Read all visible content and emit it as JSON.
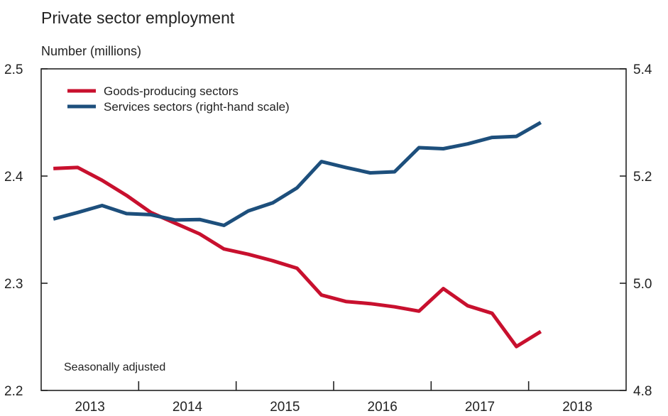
{
  "chart_data": {
    "type": "line",
    "title": "Private sector employment",
    "ylabel": "Number (millions)",
    "note": "Seasonally adjusted",
    "x_tick_labels": [
      "2013",
      "2014",
      "2015",
      "2016",
      "2017",
      "2018"
    ],
    "x_range": [
      2012.5,
      2018.5
    ],
    "y_left": {
      "range": [
        2.2,
        2.5
      ],
      "ticks": [
        "2.2",
        "2.3",
        "2.4",
        "2.5"
      ]
    },
    "y_right": {
      "range": [
        4.8,
        5.4
      ],
      "ticks": [
        "4.8",
        "5.0",
        "5.2",
        "5.4"
      ]
    },
    "grid": false,
    "legend_position": "top-left",
    "series": [
      {
        "name": "Goods-producing sectors",
        "axis": "left",
        "color": "#c8102e",
        "x": [
          2012.625,
          2012.875,
          2013.125,
          2013.375,
          2013.625,
          2013.875,
          2014.125,
          2014.375,
          2014.625,
          2014.875,
          2015.125,
          2015.375,
          2015.625,
          2015.875,
          2016.125,
          2016.375,
          2016.625,
          2016.875,
          2017.125,
          2017.375,
          2017.625
        ],
        "values": [
          2.407,
          2.408,
          2.396,
          2.382,
          2.366,
          2.356,
          2.346,
          2.332,
          2.327,
          2.321,
          2.314,
          2.289,
          2.283,
          2.281,
          2.278,
          2.274,
          2.295,
          2.279,
          2.272,
          2.241,
          2.255
        ]
      },
      {
        "name": "Services sectors (right-hand scale)",
        "axis": "right",
        "color": "#1d4f7c",
        "x": [
          2012.625,
          2012.875,
          2013.125,
          2013.375,
          2013.625,
          2013.875,
          2014.125,
          2014.375,
          2014.625,
          2014.875,
          2015.125,
          2015.375,
          2015.625,
          2015.875,
          2016.125,
          2016.375,
          2016.625,
          2016.875,
          2017.125,
          2017.375,
          2017.625
        ],
        "values": [
          5.12,
          5.132,
          5.145,
          5.13,
          5.128,
          5.118,
          5.119,
          5.108,
          5.135,
          5.15,
          5.178,
          5.227,
          5.216,
          5.206,
          5.208,
          5.253,
          5.251,
          5.26,
          5.272,
          5.274,
          5.3
        ]
      }
    ]
  }
}
